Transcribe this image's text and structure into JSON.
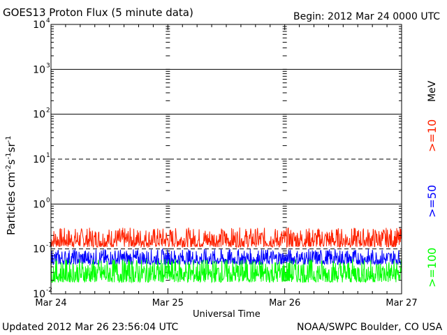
{
  "chart_data": {
    "type": "line",
    "title": "GOES13 Proton Flux (5 minute data)",
    "begin": "Begin: 2012 Mar 24 0000 UTC",
    "xlabel": "Universal Time",
    "ylabel_main": "Particles cm",
    "ylabel_sup1": "-2",
    "ylabel_mid1": "s",
    "ylabel_sup2": "-1",
    "ylabel_mid2": "sr",
    "ylabel_sup3": "-1",
    "y_scale": "log",
    "ylim": [
      0.01,
      10000
    ],
    "y_ticks": [
      {
        "base": "10",
        "exp": "-2",
        "value": 0.01
      },
      {
        "base": "10",
        "exp": "-1",
        "value": 0.1
      },
      {
        "base": "10",
        "exp": "0",
        "value": 1
      },
      {
        "base": "10",
        "exp": "1",
        "value": 10
      },
      {
        "base": "10",
        "exp": "2",
        "value": 100
      },
      {
        "base": "10",
        "exp": "3",
        "value": 1000
      },
      {
        "base": "10",
        "exp": "4",
        "value": 10000
      }
    ],
    "x_ticks": [
      "Mar 24",
      "Mar 25",
      "Mar 26",
      "Mar 27"
    ],
    "x_range_days": [
      0,
      3
    ],
    "unit_label": "MeV",
    "series": [
      {
        "name": ">=10",
        "color": "#ff2200",
        "typical_low": 0.11,
        "typical_high": 0.3
      },
      {
        "name": ">=50",
        "color": "#0000ff",
        "typical_low": 0.045,
        "typical_high": 0.1
      },
      {
        "name": ">=100",
        "color": "#00ff00",
        "typical_low": 0.018,
        "typical_high": 0.06
      }
    ],
    "grid": true
  },
  "footer": {
    "updated": "Updated 2012 Mar 26 23:56:04 UTC",
    "source": "NOAA/SWPC Boulder, CO USA"
  }
}
